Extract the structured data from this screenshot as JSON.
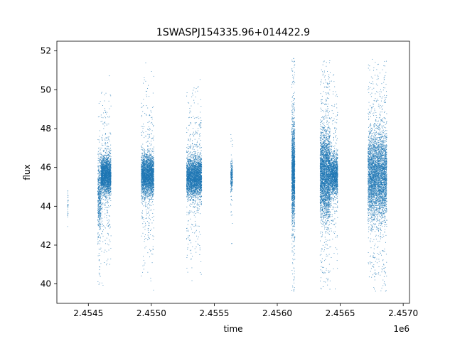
{
  "chart_data": {
    "type": "scatter",
    "title": "1SWASPJ154335.96+014422.9",
    "xlabel": "time",
    "ylabel": "flux",
    "x_offset_label": "1e6",
    "xlim": [
      2454250,
      2457050
    ],
    "ylim": [
      39.0,
      52.5
    ],
    "x_ticks": [
      {
        "value": 2454500,
        "label": "2.4545"
      },
      {
        "value": 2455000,
        "label": "2.4550"
      },
      {
        "value": 2455500,
        "label": "2.4555"
      },
      {
        "value": 2456000,
        "label": "2.4560"
      },
      {
        "value": 2456500,
        "label": "2.4565"
      },
      {
        "value": 2457000,
        "label": "2.4570"
      }
    ],
    "y_ticks": [
      {
        "value": 40,
        "label": "40"
      },
      {
        "value": 42,
        "label": "42"
      },
      {
        "value": 44,
        "label": "44"
      },
      {
        "value": 46,
        "label": "46"
      },
      {
        "value": 48,
        "label": "48"
      },
      {
        "value": 50,
        "label": "50"
      },
      {
        "value": 52,
        "label": "52"
      }
    ],
    "grid": false,
    "legend": "none",
    "marker_color": "#1f77b4",
    "series": [
      {
        "segments": [
          {
            "x_start": 2454335,
            "x_end": 2454340,
            "center": 44.0,
            "core_spread": 0.5,
            "min": 42.8,
            "max": 44.8,
            "density": 30
          },
          {
            "x_start": 2454575,
            "x_end": 2454600,
            "center": 44.5,
            "core_spread": 1.0,
            "min": 39.8,
            "max": 49.5,
            "density": 500
          },
          {
            "x_start": 2454600,
            "x_end": 2454680,
            "center": 45.6,
            "core_spread": 0.45,
            "min": 39.6,
            "max": 51.6,
            "density": 2600
          },
          {
            "x_start": 2454920,
            "x_end": 2455020,
            "center": 45.6,
            "core_spread": 0.5,
            "min": 39.6,
            "max": 51.7,
            "density": 3000
          },
          {
            "x_start": 2455280,
            "x_end": 2455400,
            "center": 45.5,
            "core_spread": 0.5,
            "min": 39.6,
            "max": 51.6,
            "density": 3200
          },
          {
            "x_start": 2455630,
            "x_end": 2455645,
            "center": 45.5,
            "core_spread": 0.35,
            "min": 40.9,
            "max": 48.0,
            "density": 250
          },
          {
            "x_start": 2456115,
            "x_end": 2456140,
            "center": 45.7,
            "core_spread": 1.2,
            "min": 39.6,
            "max": 51.7,
            "density": 1700
          },
          {
            "x_start": 2456340,
            "x_end": 2456420,
            "center": 45.6,
            "core_spread": 1.1,
            "min": 39.6,
            "max": 51.7,
            "density": 3000
          },
          {
            "x_start": 2456420,
            "x_end": 2456480,
            "center": 45.6,
            "core_spread": 0.5,
            "min": 39.6,
            "max": 51.5,
            "density": 1500
          },
          {
            "x_start": 2456720,
            "x_end": 2456870,
            "center": 45.6,
            "core_spread": 1.1,
            "min": 39.6,
            "max": 51.6,
            "density": 4200
          }
        ]
      }
    ]
  }
}
